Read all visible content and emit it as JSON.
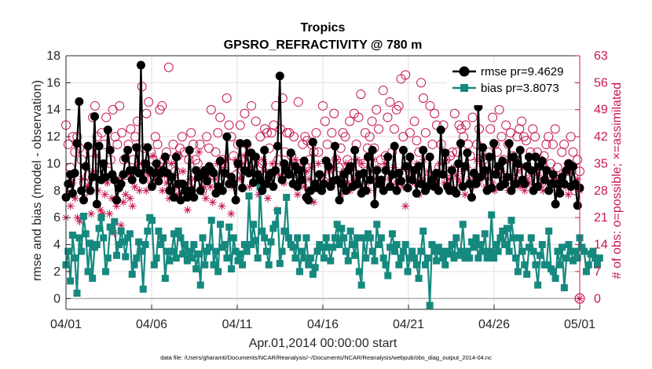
{
  "chart_data": {
    "type": "line",
    "title": "Tropics",
    "subtitle": "GPSRO_REFRACTIVITY @ 780 m",
    "xlabel": "Apr.01,2014 00:00:00 start",
    "ylabel": "rmse and bias (model - observation)",
    "ylabel_right": "# of obs: o=possible; ×=assimilated",
    "ylim": [
      -0.8,
      18
    ],
    "ylim_right": [
      -2.8,
      63
    ],
    "xlim": [
      0,
      30
    ],
    "yticks": [
      "0",
      "2",
      "4",
      "6",
      "8",
      "10",
      "12",
      "14",
      "16",
      "18"
    ],
    "yticks_right": [
      "0",
      "7",
      "14",
      "21",
      "28",
      "35",
      "42",
      "49",
      "56",
      "63"
    ],
    "xticks": [
      {
        "day": 0,
        "label": "04/01"
      },
      {
        "day": 5,
        "label": "04/06"
      },
      {
        "day": 10,
        "label": "04/11"
      },
      {
        "day": 15,
        "label": "04/16"
      },
      {
        "day": 20,
        "label": "04/21"
      },
      {
        "day": 25,
        "label": "04/26"
      },
      {
        "day": 30,
        "label": "05/01"
      }
    ],
    "legend": {
      "position": "top-right"
    },
    "rmse": {
      "name": "rmse pr=9.4629",
      "color": "#000000",
      "values": [
        7.5,
        8.5,
        9.2,
        7.8,
        9.3,
        11.5,
        14.6,
        8.0,
        7.3,
        9.8,
        11.3,
        8.0,
        9.0,
        13.5,
        7.0,
        11.3,
        8.8,
        10.0,
        9.0,
        12.5,
        11.0,
        9.2,
        8.8,
        7.3,
        8.2,
        8.5,
        9.2,
        10.4,
        11.0,
        9.5,
        8.8,
        9.5,
        11.2,
        9.3,
        17.3,
        8.8,
        10.0,
        11.2,
        9.5,
        8.3,
        9.3,
        10.0,
        8.7,
        9.3,
        9.5,
        10.5,
        9.3,
        8.0,
        9.0,
        7.5,
        10.5,
        8.5,
        7.3,
        8.5,
        8.0,
        7.5,
        11.0,
        8.0,
        7.5,
        9.5,
        9.0,
        8.0,
        9.2,
        9.5,
        8.7,
        9.8,
        9.5,
        9.3,
        7.8,
        8.3,
        10.2,
        8.0,
        9.3,
        12.0,
        8.5,
        9.0,
        8.5,
        7.3,
        10.0,
        11.5,
        8.2,
        9.5,
        11.5,
        9.3,
        10.8,
        8.6,
        10.5,
        9.2,
        8.8,
        8.0,
        11.0,
        8.5,
        9.0,
        9.3,
        8.3,
        9.5,
        11.3,
        16.5,
        8.8,
        10.0,
        9.5,
        9.2,
        10.8,
        8.5,
        9.8,
        8.3,
        9.5,
        8.8,
        10.2,
        7.5,
        7.3,
        8.0,
        11.6,
        8.5,
        8.2,
        9.2,
        8.0,
        8.5,
        10.2,
        9.8,
        8.3,
        8.7,
        11.3,
        8.8,
        7.3,
        8.5,
        9.2,
        8.0,
        9.5,
        9.8,
        8.3,
        11.0,
        8.5,
        9.2,
        7.8,
        9.3,
        8.0,
        10.5,
        8.8,
        11.0,
        7.0,
        9.5,
        8.5,
        8.8,
        8.0,
        9.5,
        10.5,
        8.3,
        9.2,
        11.3,
        8.0,
        9.3,
        8.7,
        11.0,
        9.8,
        8.2,
        10.5,
        8.8,
        9.5,
        7.8,
        9.8,
        8.5,
        11.0,
        8.0,
        8.3,
        10.5,
        8.8,
        8.3,
        9.3,
        8.0,
        12.5,
        9.2,
        10.8,
        8.3,
        8.0,
        9.5,
        8.0,
        7.8,
        10.0,
        11.5,
        8.3,
        9.8,
        10.8,
        8.5,
        7.5,
        9.3,
        8.5,
        14.2,
        9.0,
        11.2,
        9.5,
        8.0,
        10.5,
        8.2,
        11.5,
        9.2,
        9.8,
        8.3,
        10.2,
        8.5,
        9.0,
        11.5,
        8.0,
        10.5,
        8.5,
        10.0,
        11.0,
        8.8,
        8.5,
        9.8,
        10.5,
        9.5,
        8.0,
        10.5,
        8.3,
        9.8,
        10.2,
        8.8,
        9.5,
        8.0,
        8.5,
        9.2,
        7.0,
        8.5,
        7.8,
        9.0,
        8.5,
        9.5,
        10.0,
        8.3,
        9.8,
        8.5,
        6.9,
        8.2
      ]
    },
    "bias": {
      "name": "bias pr=3.8073",
      "color": "#16897f",
      "values": [
        2.5,
        3.5,
        1.3,
        4.7,
        3.0,
        0.4,
        4.5,
        3.5,
        6.1,
        4.8,
        2.0,
        4.1,
        1.5,
        3.8,
        4.0,
        5.2,
        6.0,
        4.5,
        2.0,
        3.0,
        5.3,
        5.0,
        5.7,
        3.2,
        4.0,
        5.0,
        4.2,
        3.1,
        4.5,
        4.8,
        1.8,
        2.5,
        3.0,
        4.2,
        3.5,
        0.7,
        4.0,
        5.0,
        6.0,
        5.8,
        2.5,
        3.0,
        5.0,
        4.0,
        4.5,
        1.5,
        3.5,
        2.8,
        3.5,
        4.8,
        3.0,
        5.0,
        4.5,
        3.3,
        4.0,
        2.8,
        3.5,
        3.0,
        4.0,
        2.2,
        3.3,
        1.0,
        4.5,
        2.5,
        3.5,
        3.8,
        5.8,
        2.5,
        3.5,
        2.0,
        5.5,
        3.8,
        4.0,
        3.0,
        5.3,
        2.2,
        4.5,
        3.5,
        2.8,
        3.3,
        2.5,
        4.0,
        3.5,
        7.6,
        4.0,
        5.5,
        4.3,
        3.0,
        8.3,
        5.0,
        4.5,
        3.5,
        2.5,
        4.2,
        5.2,
        5.5,
        6.5,
        2.6,
        3.5,
        5.0,
        7.5,
        4.5,
        4.0,
        3.8,
        3.0,
        4.5,
        2.0,
        3.5,
        3.0,
        4.5,
        2.5,
        3.0,
        1.8,
        2.3,
        3.5,
        4.0,
        3.8,
        3.0,
        4.5,
        3.8,
        2.8,
        3.8,
        4.5,
        5.5,
        4.0,
        5.2,
        4.5,
        3.5,
        2.8,
        5.0,
        4.0,
        3.2,
        4.5,
        2.0,
        1.0,
        4.5,
        3.0,
        4.8,
        4.5,
        3.5,
        2.8,
        5.5,
        4.0,
        4.5,
        3.0,
        2.5,
        1.7,
        3.8,
        4.8,
        3.5,
        4.0,
        2.5,
        3.0,
        3.5,
        4.0,
        2.0,
        3.0,
        3.5,
        3.0,
        2.5,
        1.5,
        3.5,
        5.0,
        2.5,
        3.0,
        -0.5,
        4.0,
        3.5,
        2.8,
        3.8,
        3.5,
        3.0,
        2.5,
        3.5,
        3.3,
        4.0,
        3.0,
        4.5,
        3.2,
        3.5,
        5.5,
        3.0,
        3.5,
        3.0,
        4.2,
        3.8,
        4.5,
        3.0,
        4.0,
        3.5,
        4.8,
        3.0,
        3.5,
        6.2,
        3.0,
        4.0,
        3.5,
        4.5,
        5.0,
        4.0,
        5.2,
        3.5,
        5.8,
        4.5,
        3.0,
        2.0,
        4.5,
        3.5,
        2.5,
        1.8,
        3.8,
        4.5,
        3.5,
        2.5,
        1.0,
        3.2,
        4.0,
        2.5,
        2.5,
        5.0,
        2.2,
        2.0,
        1.5,
        3.5,
        2.5,
        3.8,
        0.8,
        3.0,
        4.0,
        3.5,
        2.8,
        3.5,
        3.0,
        4.5,
        3.8,
        3.5,
        2.0,
        2.5,
        3.3,
        3.5,
        3.0,
        2.5,
        3.0
      ]
    },
    "possible": {
      "name": "possible",
      "color": "#c8174f",
      "values": [
        45,
        40,
        34,
        42,
        38,
        42,
        39,
        36,
        30,
        28,
        32,
        38,
        47,
        50,
        42,
        34,
        43,
        40,
        47,
        33,
        36,
        49,
        42,
        40,
        50,
        43,
        36,
        32,
        40,
        44,
        36,
        42,
        46,
        34,
        55,
        39,
        48,
        51,
        38,
        36,
        42,
        40,
        49,
        50,
        36,
        38,
        60,
        36,
        40,
        33,
        37,
        39,
        42,
        38,
        29,
        36,
        43,
        40,
        36,
        35,
        40,
        28,
        33,
        42,
        39,
        49,
        32,
        38,
        43,
        47,
        36,
        33,
        52,
        45,
        42,
        37,
        32,
        40,
        45,
        36,
        48,
        40,
        33,
        50,
        35,
        46,
        34,
        42,
        35,
        44,
        43,
        39,
        43,
        45,
        50,
        36,
        44,
        52,
        38,
        43,
        43,
        37,
        42,
        33,
        51,
        35,
        40,
        42,
        41,
        36,
        40,
        38,
        43,
        38,
        30,
        50,
        46,
        40,
        32,
        43,
        48,
        36,
        34,
        39,
        43,
        42,
        36,
        46,
        35,
        48,
        40,
        47,
        53,
        35,
        43,
        39,
        42,
        46,
        39,
        49,
        44,
        36,
        54,
        37,
        47,
        51,
        38,
        44,
        49,
        50,
        57,
        42,
        58,
        34,
        43,
        33,
        46,
        41,
        38,
        56,
        52,
        43,
        31,
        50,
        40,
        48,
        45,
        34,
        40,
        45,
        36,
        33,
        37,
        38,
        48,
        38,
        45,
        44,
        42,
        45,
        40,
        37,
        47,
        54,
        40,
        44,
        38,
        36,
        35,
        38,
        44,
        47,
        40,
        38,
        49,
        42,
        36,
        45,
        40,
        43,
        37,
        31,
        42,
        44,
        46,
        42,
        41,
        53,
        38,
        44,
        42,
        38,
        36,
        30,
        37,
        40,
        42,
        35,
        40,
        44,
        34,
        31,
        38,
        40,
        33,
        35,
        42,
        38,
        28,
        36,
        33
      ]
    },
    "assimilated": {
      "name": "assimilated",
      "color": "#c8174f",
      "values": [
        21,
        27,
        24,
        30,
        26,
        21,
        20,
        31,
        26,
        29,
        29,
        22,
        33,
        37,
        28,
        23,
        22,
        27,
        30,
        22,
        26,
        17,
        24,
        31,
        19,
        25,
        27,
        32,
        26,
        24,
        29,
        34,
        28,
        35,
        33,
        28,
        32,
        30,
        37,
        31,
        33,
        34,
        28,
        32,
        30,
        26,
        35,
        32,
        29,
        27,
        30,
        33,
        28,
        23,
        31,
        29,
        31,
        33,
        38,
        31,
        29,
        26,
        32,
        29,
        25,
        31,
        35,
        28,
        24,
        34,
        36,
        32,
        22,
        29,
        36,
        34,
        31,
        35,
        37,
        33,
        29,
        34,
        30,
        36,
        27,
        31,
        36,
        33,
        26,
        30,
        35,
        33,
        23,
        32,
        35,
        30,
        33,
        34,
        38,
        32,
        36,
        27,
        31,
        35,
        29,
        33,
        31,
        34,
        25,
        30,
        35,
        28,
        32,
        36,
        30,
        33,
        29,
        34,
        36,
        31,
        27,
        33,
        35,
        30,
        28,
        34,
        31,
        36,
        29,
        35,
        32,
        30,
        28,
        33,
        36,
        31,
        34,
        30,
        29,
        35,
        33,
        31,
        29,
        34,
        30,
        30,
        33,
        29,
        24,
        31,
        36,
        33,
        30,
        35,
        27,
        31,
        36,
        29,
        33,
        31,
        32,
        30,
        28,
        35,
        33,
        30,
        36,
        31,
        29,
        34,
        32,
        31,
        30,
        33,
        27,
        34,
        31,
        29,
        33,
        36,
        30,
        35,
        32,
        29,
        31,
        33,
        30,
        28,
        34,
        29,
        33,
        31,
        30,
        28,
        36,
        31,
        30,
        33,
        29,
        34,
        28,
        31,
        30,
        32,
        29,
        33,
        32,
        30,
        28,
        34,
        31,
        29,
        33,
        30,
        31,
        28,
        32,
        30,
        29,
        27,
        34,
        33,
        29,
        31,
        28
      ]
    }
  },
  "footer": {
    "data_file": "data file: /Users/gharamti/Documents/NCAR/Reanalysis/~/Documents/NCAR/Reanalysis/webpub/obs_diag_output_2014-04.nc"
  }
}
